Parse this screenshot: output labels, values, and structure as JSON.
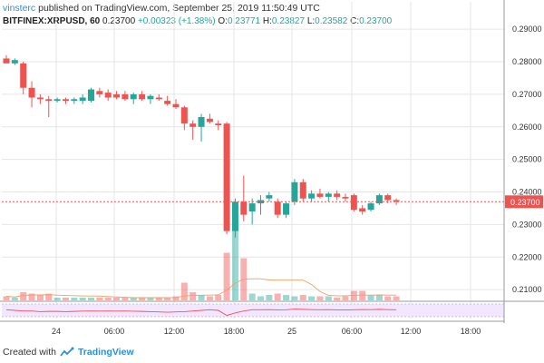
{
  "header": {
    "user": "vinsterc",
    "published_text": "published on TradingView.com, September 25, 2019 11:50:49 UTC",
    "symbol": "BITFINEX:XRPUSD, 60",
    "last": "0.23700",
    "change": "+0.00323 (+1.38%)",
    "o_label": "O:",
    "o_value": "0.23771",
    "h_label": "H:",
    "h_value": "0.23827",
    "l_label": "L:",
    "l_value": "0.23582",
    "c_label": "C:",
    "c_value": "0.23700"
  },
  "footer": {
    "created_with": "Created with",
    "brand": "TradingView"
  },
  "colors": {
    "up": "#26a69a",
    "down": "#ef5350",
    "price_line": "#ef5350",
    "grid": "#e6e6e6",
    "osc_band": "#f3e6ff"
  },
  "chart_data": {
    "type": "candlestick",
    "y_axis_ticks": [
      "0.29000",
      "0.28000",
      "0.27000",
      "0.26000",
      "0.25000",
      "0.24000",
      "0.23000",
      "0.22000",
      "0.21000"
    ],
    "ylim": [
      0.2067,
      0.2906
    ],
    "x_axis_ticks": [
      "24",
      "06:00",
      "12:00",
      "18:00",
      "25",
      "06:00",
      "12:00",
      "18:00"
    ],
    "last_price_label": "0.23700",
    "candles": [
      {
        "o": 0.281,
        "h": 0.282,
        "l": 0.28,
        "c": 0.2795
      },
      {
        "o": 0.2795,
        "h": 0.281,
        "l": 0.279,
        "c": 0.2805
      },
      {
        "o": 0.2795,
        "h": 0.28,
        "l": 0.27,
        "c": 0.272
      },
      {
        "o": 0.272,
        "h": 0.274,
        "l": 0.266,
        "c": 0.269
      },
      {
        "o": 0.269,
        "h": 0.27,
        "l": 0.267,
        "c": 0.2685
      },
      {
        "o": 0.2685,
        "h": 0.2695,
        "l": 0.263,
        "c": 0.268
      },
      {
        "o": 0.268,
        "h": 0.269,
        "l": 0.2675,
        "c": 0.2685
      },
      {
        "o": 0.2685,
        "h": 0.269,
        "l": 0.267,
        "c": 0.268
      },
      {
        "o": 0.268,
        "h": 0.269,
        "l": 0.267,
        "c": 0.2685
      },
      {
        "o": 0.268,
        "h": 0.27,
        "l": 0.267,
        "c": 0.269
      },
      {
        "o": 0.268,
        "h": 0.272,
        "l": 0.2675,
        "c": 0.2715
      },
      {
        "o": 0.271,
        "h": 0.272,
        "l": 0.269,
        "c": 0.27
      },
      {
        "o": 0.2705,
        "h": 0.2715,
        "l": 0.268,
        "c": 0.269
      },
      {
        "o": 0.27,
        "h": 0.271,
        "l": 0.2685,
        "c": 0.269
      },
      {
        "o": 0.27,
        "h": 0.271,
        "l": 0.268,
        "c": 0.2685
      },
      {
        "o": 0.2685,
        "h": 0.2705,
        "l": 0.267,
        "c": 0.27
      },
      {
        "o": 0.27,
        "h": 0.271,
        "l": 0.268,
        "c": 0.2685
      },
      {
        "o": 0.2685,
        "h": 0.27,
        "l": 0.267,
        "c": 0.2695
      },
      {
        "o": 0.269,
        "h": 0.27,
        "l": 0.268,
        "c": 0.2685
      },
      {
        "o": 0.268,
        "h": 0.2695,
        "l": 0.2665,
        "c": 0.267
      },
      {
        "o": 0.267,
        "h": 0.2685,
        "l": 0.2655,
        "c": 0.266
      },
      {
        "o": 0.266,
        "h": 0.2665,
        "l": 0.259,
        "c": 0.261
      },
      {
        "o": 0.261,
        "h": 0.262,
        "l": 0.256,
        "c": 0.26
      },
      {
        "o": 0.26,
        "h": 0.264,
        "l": 0.2555,
        "c": 0.263
      },
      {
        "o": 0.2625,
        "h": 0.264,
        "l": 0.261,
        "c": 0.2615
      },
      {
        "o": 0.261,
        "h": 0.262,
        "l": 0.259,
        "c": 0.2605
      },
      {
        "o": 0.261,
        "h": 0.2615,
        "l": 0.227,
        "c": 0.228
      },
      {
        "o": 0.228,
        "h": 0.238,
        "l": 0.226,
        "c": 0.237
      },
      {
        "o": 0.237,
        "h": 0.245,
        "l": 0.231,
        "c": 0.233
      },
      {
        "o": 0.234,
        "h": 0.238,
        "l": 0.23,
        "c": 0.2365
      },
      {
        "o": 0.2365,
        "h": 0.239,
        "l": 0.233,
        "c": 0.2375
      },
      {
        "o": 0.238,
        "h": 0.24,
        "l": 0.237,
        "c": 0.239
      },
      {
        "o": 0.237,
        "h": 0.238,
        "l": 0.232,
        "c": 0.233
      },
      {
        "o": 0.233,
        "h": 0.237,
        "l": 0.232,
        "c": 0.2365
      },
      {
        "o": 0.237,
        "h": 0.244,
        "l": 0.236,
        "c": 0.243
      },
      {
        "o": 0.243,
        "h": 0.244,
        "l": 0.237,
        "c": 0.238
      },
      {
        "o": 0.238,
        "h": 0.2405,
        "l": 0.237,
        "c": 0.2395
      },
      {
        "o": 0.2395,
        "h": 0.241,
        "l": 0.238,
        "c": 0.2385
      },
      {
        "o": 0.2385,
        "h": 0.24,
        "l": 0.237,
        "c": 0.2395
      },
      {
        "o": 0.2395,
        "h": 0.2405,
        "l": 0.2375,
        "c": 0.2385
      },
      {
        "o": 0.2385,
        "h": 0.2395,
        "l": 0.237,
        "c": 0.238
      },
      {
        "o": 0.239,
        "h": 0.2395,
        "l": 0.234,
        "c": 0.2345
      },
      {
        "o": 0.235,
        "h": 0.236,
        "l": 0.233,
        "c": 0.234
      },
      {
        "o": 0.2345,
        "h": 0.237,
        "l": 0.234,
        "c": 0.2365
      },
      {
        "o": 0.2365,
        "h": 0.2395,
        "l": 0.236,
        "c": 0.239
      },
      {
        "o": 0.239,
        "h": 0.2395,
        "l": 0.2365,
        "c": 0.2375
      },
      {
        "o": 0.2375,
        "h": 0.238,
        "l": 0.236,
        "c": 0.237
      }
    ],
    "volume": [
      0.03,
      0.02,
      0.06,
      0.05,
      0.04,
      0.05,
      0.02,
      0.02,
      0.02,
      0.02,
      0.02,
      0.02,
      0.02,
      0.02,
      0.02,
      0.02,
      0.02,
      0.02,
      0.02,
      0.02,
      0.03,
      0.13,
      0.06,
      0.04,
      0.03,
      0.04,
      0.35,
      0.55,
      0.31,
      0.05,
      0.03,
      0.04,
      0.05,
      0.04,
      0.03,
      0.04,
      0.03,
      0.03,
      0.03,
      0.02,
      0.03,
      0.07,
      0.07,
      0.04,
      0.04,
      0.03,
      0.03
    ]
  }
}
